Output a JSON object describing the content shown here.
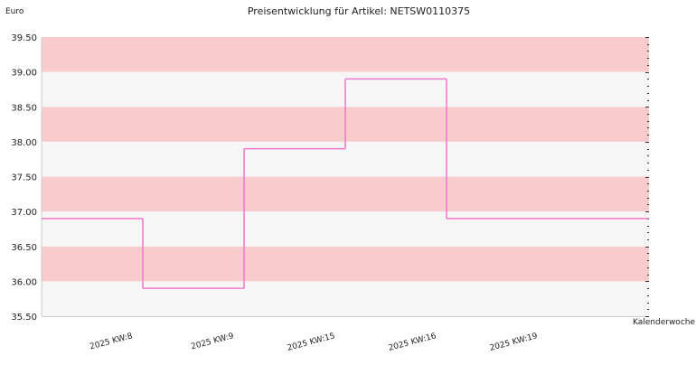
{
  "chart_data": {
    "type": "line",
    "step": true,
    "title": "Preisentwicklung für Artikel: NETSW0110375",
    "ylabel": "Euro",
    "xlabel": "Kalenderwoche",
    "categories": [
      "2025 KW:8",
      "2025 KW:9",
      "2025 KW:15",
      "2025 KW:16",
      "2025 KW:19"
    ],
    "series": [
      {
        "values": [
          36.9,
          35.9,
          37.9,
          38.9,
          36.9
        ]
      }
    ],
    "yticks": [
      "35.50",
      "36.00",
      "36.50",
      "37.00",
      "37.50",
      "38.00",
      "38.50",
      "39.00",
      "39.50"
    ],
    "ylim": [
      35.5,
      39.5
    ],
    "ystep": 0.5,
    "grid": true,
    "colors": {
      "line": "#ee77cc",
      "band_pink": "#f8cccc",
      "band_light": "#f6f6f6",
      "axis": "#cccccc",
      "text": "#222222"
    }
  }
}
